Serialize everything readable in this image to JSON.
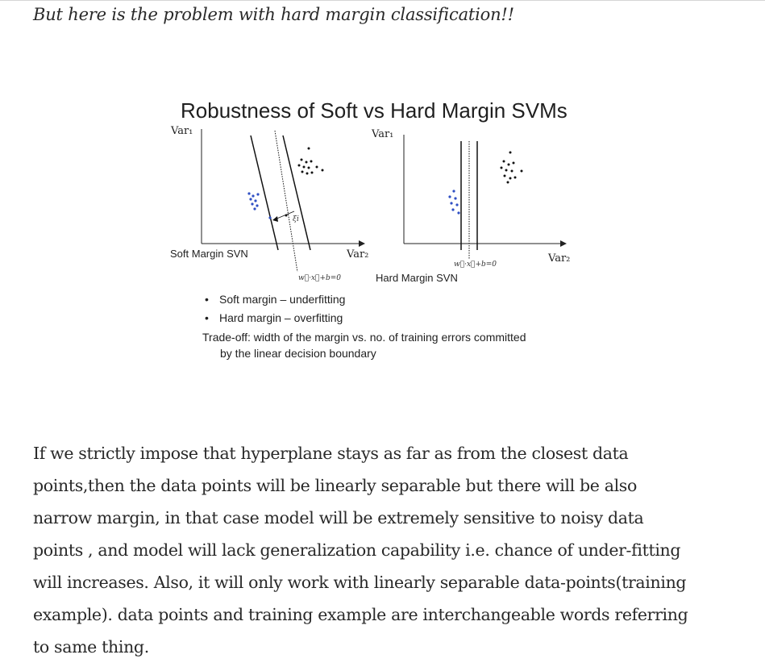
{
  "article": {
    "intro": "But here is the problem with hard margin classification!!",
    "figure": {
      "title": "Robustness of Soft vs Hard Margin SVMs",
      "left_plot": {
        "y_label": "Var₁",
        "x_label": "Var₂",
        "caption": "Soft Margin SVN",
        "equation": "w⃗·x⃗+b=0",
        "slack_label": "ξi"
      },
      "right_plot": {
        "y_label": "Var₁",
        "x_label": "Var₂",
        "caption": "Hard Margin SVN",
        "equation": "w⃗·x⃗+b=0"
      },
      "bullets": [
        "Soft margin – underfitting",
        "Hard margin – overfitting"
      ],
      "tradeoff_line1": "Trade-off: width of the margin vs. no. of training errors committed",
      "tradeoff_line2": "by the linear decision boundary",
      "colors": {
        "class_a": "#2f4fc4",
        "class_b": "#111111"
      }
    },
    "paragraph_lines": [
      "If we strictly impose that hyperplane stays as far as from the closest data",
      "points,then the data points will be linearly separable but there will be also",
      "narrow margin, in that case model will be extremely sensitive to noisy data",
      "points , and model will lack generalization capability i.e. chance of under-fitting",
      "will increases. Also, it will only work with linearly separable data-points(training",
      "example). data points and training example are interchangeable words referring",
      "to same thing."
    ]
  }
}
